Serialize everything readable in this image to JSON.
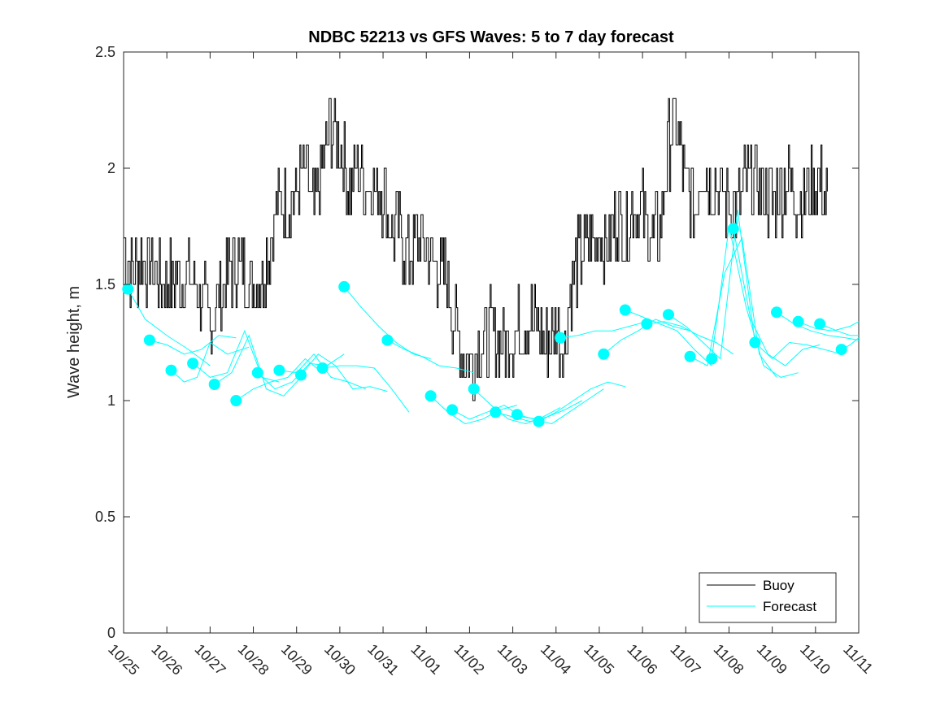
{
  "chart_data": {
    "type": "line",
    "title": "NDBC 52213 vs GFS Waves: 5 to 7 day forecast",
    "xlabel": "",
    "ylabel": "Wave height, m",
    "x_tick_labels": [
      "10/25",
      "10/26",
      "10/27",
      "10/28",
      "10/29",
      "10/30",
      "10/31",
      "11/01",
      "11/02",
      "11/03",
      "11/04",
      "11/05",
      "11/06",
      "11/07",
      "11/08",
      "11/09",
      "11/10",
      "11/11"
    ],
    "y_tick_labels": [
      "0",
      "0.5",
      "1",
      "1.5",
      "2",
      "2.5"
    ],
    "xlim_days": [
      0,
      17
    ],
    "ylim": [
      0,
      2.5
    ],
    "y_ticks": [
      0,
      0.5,
      1,
      1.5,
      2,
      2.5
    ],
    "grid": false,
    "legend": {
      "position": "bottom-right",
      "entries": [
        "Buoy",
        "Forecast"
      ]
    },
    "colors": {
      "buoy": "#000000",
      "forecast": "#00ffff"
    },
    "buoy_anchor_series": {
      "name": "Buoy",
      "x_days": [
        0.0,
        0.1,
        0.2,
        0.4,
        0.6,
        0.8,
        1.0,
        1.2,
        1.4,
        1.6,
        1.8,
        2.0,
        2.2,
        2.4,
        2.6,
        2.8,
        3.0,
        3.2,
        3.4,
        3.6,
        3.8,
        4.0,
        4.2,
        4.4,
        4.6,
        4.8,
        5.0,
        5.2,
        5.4,
        5.6,
        5.8,
        6.0,
        6.2,
        6.4,
        6.6,
        6.8,
        7.0,
        7.2,
        7.4,
        7.6,
        7.8,
        8.0,
        8.1,
        8.2,
        8.3,
        8.4,
        8.5,
        8.6,
        8.8,
        9.0,
        9.2,
        9.4,
        9.6,
        9.8,
        10.0,
        10.2,
        10.4,
        10.6,
        10.8,
        11.0,
        11.2,
        11.4,
        11.6,
        11.8,
        12.0,
        12.2,
        12.4,
        12.6,
        12.8,
        13.0,
        13.2,
        13.4,
        13.6,
        13.8,
        14.0,
        14.2,
        14.4,
        14.6,
        14.8,
        15.0,
        15.2,
        15.4,
        15.6,
        15.8,
        16.0,
        16.2,
        16.3
      ],
      "values": [
        1.7,
        1.6,
        1.55,
        1.62,
        1.58,
        1.55,
        1.5,
        1.52,
        1.53,
        1.5,
        1.45,
        1.3,
        1.45,
        1.55,
        1.6,
        1.55,
        1.5,
        1.55,
        1.7,
        1.85,
        1.85,
        1.9,
        2.0,
        1.8,
        2.0,
        2.2,
        2.1,
        1.9,
        2.0,
        1.95,
        1.9,
        1.9,
        1.75,
        1.7,
        1.6,
        1.7,
        1.65,
        1.6,
        1.55,
        1.4,
        1.25,
        1.15,
        1.2,
        1.25,
        1.25,
        1.25,
        1.3,
        1.3,
        1.25,
        1.3,
        1.3,
        1.35,
        1.3,
        1.25,
        1.3,
        1.25,
        1.55,
        1.65,
        1.7,
        1.7,
        1.65,
        1.8,
        1.7,
        1.85,
        1.8,
        1.7,
        1.75,
        2.1,
        2.2,
        1.9,
        1.85,
        2.0,
        1.95,
        1.9,
        1.85,
        1.85,
        1.95,
        1.95,
        1.9,
        1.85,
        1.9,
        1.95,
        1.85,
        1.9,
        1.95,
        1.9,
        1.8
      ]
    },
    "forecast_series": [
      {
        "name": "Forecast",
        "x_days": [
          0.1,
          0.5,
          1.0,
          1.5,
          2.0
        ],
        "values": [
          1.48,
          1.35,
          1.28,
          1.22,
          1.15
        ]
      },
      {
        "name": "Forecast",
        "x_days": [
          0.6,
          1.0,
          1.4,
          1.8,
          2.2,
          2.6
        ],
        "values": [
          1.26,
          1.24,
          1.2,
          1.22,
          1.28,
          1.27
        ]
      },
      {
        "name": "Forecast",
        "x_days": [
          1.1,
          1.4,
          1.7,
          2.0,
          2.4,
          2.9
        ],
        "values": [
          1.13,
          1.08,
          1.1,
          1.25,
          1.2,
          1.23
        ]
      },
      {
        "name": "Forecast",
        "x_days": [
          1.6,
          2.0,
          2.4,
          2.8,
          3.2,
          3.6
        ],
        "values": [
          1.16,
          1.1,
          1.12,
          1.3,
          1.1,
          1.08
        ]
      },
      {
        "name": "Forecast",
        "x_days": [
          2.1,
          2.5,
          2.9,
          3.3,
          3.7,
          4.1
        ],
        "values": [
          1.07,
          1.12,
          1.28,
          1.05,
          1.02,
          1.1
        ]
      },
      {
        "name": "Forecast",
        "x_days": [
          2.6,
          3.0,
          3.4,
          3.8,
          4.2,
          4.6
        ],
        "values": [
          1.0,
          1.05,
          1.08,
          1.1,
          1.18,
          1.12
        ]
      },
      {
        "name": "Forecast",
        "x_days": [
          3.1,
          3.5,
          3.9,
          4.3,
          4.7,
          5.1
        ],
        "values": [
          1.12,
          1.05,
          1.08,
          1.16,
          1.15,
          1.2
        ]
      },
      {
        "name": "Forecast",
        "x_days": [
          3.6,
          4.0,
          4.4,
          4.8,
          5.2,
          5.6
        ],
        "values": [
          1.13,
          1.12,
          1.2,
          1.1,
          1.08,
          1.05
        ]
      },
      {
        "name": "Forecast",
        "x_days": [
          4.1,
          4.5,
          4.9,
          5.3,
          5.7,
          6.1
        ],
        "values": [
          1.11,
          1.2,
          1.15,
          1.05,
          1.06,
          1.04
        ]
      },
      {
        "name": "Forecast",
        "x_days": [
          4.6,
          5.0,
          5.4,
          5.8,
          6.2,
          6.6
        ],
        "values": [
          1.14,
          1.15,
          1.15,
          1.14,
          1.05,
          0.95
        ]
      },
      {
        "name": "Forecast",
        "x_days": [
          5.1,
          5.5,
          5.9,
          6.3,
          6.7,
          7.1
        ],
        "values": [
          1.49,
          1.4,
          1.32,
          1.25,
          1.2,
          1.18
        ]
      },
      {
        "name": "Forecast",
        "x_days": [
          6.1,
          6.5,
          6.9,
          7.3,
          7.7,
          8.1
        ],
        "values": [
          1.26,
          1.22,
          1.19,
          1.15,
          1.14,
          1.12
        ]
      },
      {
        "name": "Forecast",
        "x_days": [
          7.1,
          7.5,
          7.9,
          8.3,
          8.7,
          9.1
        ],
        "values": [
          1.02,
          0.95,
          0.9,
          0.92,
          0.96,
          0.98
        ]
      },
      {
        "name": "Forecast",
        "x_days": [
          7.6,
          8.0,
          8.4,
          8.8,
          9.2,
          9.6
        ],
        "values": [
          0.96,
          0.92,
          0.95,
          0.98,
          0.93,
          0.92
        ]
      },
      {
        "name": "Forecast",
        "x_days": [
          8.1,
          8.5,
          8.9,
          9.3,
          9.7,
          10.1
        ],
        "values": [
          1.05,
          0.98,
          0.92,
          0.9,
          0.93,
          0.97
        ]
      },
      {
        "name": "Forecast",
        "x_days": [
          8.6,
          9.0,
          9.4,
          9.8,
          10.2,
          10.6
        ],
        "values": [
          0.95,
          0.93,
          0.91,
          0.93,
          0.96,
          1.0
        ]
      },
      {
        "name": "Forecast",
        "x_days": [
          9.1,
          9.5,
          9.9,
          10.3,
          10.7,
          11.1
        ],
        "values": [
          0.94,
          0.92,
          0.9,
          0.95,
          1.0,
          1.05
        ]
      },
      {
        "name": "Forecast",
        "x_days": [
          9.6,
          10.0,
          10.4,
          10.8,
          11.2,
          11.6
        ],
        "values": [
          0.91,
          0.95,
          1.0,
          1.05,
          1.08,
          1.06
        ]
      },
      {
        "name": "Forecast",
        "x_days": [
          10.1,
          10.5,
          10.9,
          11.3,
          11.7,
          12.1
        ],
        "values": [
          1.27,
          1.28,
          1.3,
          1.3,
          1.32,
          1.34
        ]
      },
      {
        "name": "Forecast",
        "x_days": [
          11.1,
          11.5,
          11.9,
          12.3,
          12.7,
          13.1
        ],
        "values": [
          1.2,
          1.26,
          1.3,
          1.35,
          1.32,
          1.3
        ]
      },
      {
        "name": "Forecast",
        "x_days": [
          11.6,
          12.0,
          12.4,
          12.8,
          13.2,
          13.6
        ],
        "values": [
          1.39,
          1.36,
          1.33,
          1.3,
          1.22,
          1.15
        ]
      },
      {
        "name": "Forecast",
        "x_days": [
          12.1,
          12.5,
          12.9,
          13.3,
          13.7,
          14.1
        ],
        "values": [
          1.33,
          1.34,
          1.32,
          1.28,
          1.25,
          1.2
        ]
      },
      {
        "name": "Forecast",
        "x_days": [
          12.6,
          13.0,
          13.4,
          13.8,
          14.2,
          14.6
        ],
        "values": [
          1.37,
          1.32,
          1.25,
          1.18,
          1.82,
          1.25
        ]
      },
      {
        "name": "Forecast",
        "x_days": [
          13.1,
          13.5,
          13.9,
          14.3,
          14.7,
          15.1
        ],
        "values": [
          1.19,
          1.15,
          1.55,
          1.7,
          1.2,
          1.1
        ]
      },
      {
        "name": "Forecast",
        "x_days": [
          13.6,
          14.0,
          14.4,
          14.8,
          15.2,
          15.6
        ],
        "values": [
          1.18,
          1.75,
          1.4,
          1.15,
          1.1,
          1.12
        ]
      },
      {
        "name": "Forecast",
        "x_days": [
          14.1,
          14.5,
          14.9,
          15.3,
          15.7,
          16.1
        ],
        "values": [
          1.74,
          1.35,
          1.2,
          1.15,
          1.22,
          1.24
        ]
      },
      {
        "name": "Forecast",
        "x_days": [
          14.6,
          15.0,
          15.4,
          15.8,
          16.2,
          16.6
        ],
        "values": [
          1.25,
          1.18,
          1.25,
          1.24,
          1.22,
          1.2
        ]
      },
      {
        "name": "Forecast",
        "x_days": [
          15.1,
          15.5,
          15.9,
          16.3,
          16.7,
          17.0
        ],
        "values": [
          1.38,
          1.33,
          1.3,
          1.28,
          1.27,
          1.26
        ]
      },
      {
        "name": "Forecast",
        "x_days": [
          15.6,
          16.0,
          16.4,
          16.8,
          17.0
        ],
        "values": [
          1.34,
          1.31,
          1.3,
          1.32,
          1.34
        ]
      },
      {
        "name": "Forecast",
        "x_days": [
          16.1,
          16.5,
          16.8,
          17.0
        ],
        "values": [
          1.33,
          1.3,
          1.28,
          1.28
        ]
      },
      {
        "name": "Forecast",
        "x_days": [
          16.6,
          16.8,
          17.0
        ],
        "values": [
          1.22,
          1.24,
          1.27
        ]
      }
    ],
    "forecast_markers": {
      "x_days": [
        0.1,
        0.6,
        1.1,
        1.6,
        2.1,
        2.6,
        3.1,
        3.6,
        4.1,
        4.6,
        5.1,
        6.1,
        7.1,
        7.6,
        8.1,
        8.6,
        9.1,
        9.6,
        10.1,
        11.1,
        11.6,
        12.1,
        12.6,
        13.1,
        13.6,
        14.1,
        14.6,
        15.1,
        15.6,
        16.1,
        16.6
      ],
      "values": [
        1.48,
        1.26,
        1.13,
        1.16,
        1.07,
        1.0,
        1.12,
        1.13,
        1.11,
        1.14,
        1.49,
        1.26,
        1.02,
        0.96,
        1.05,
        0.95,
        0.94,
        0.91,
        1.27,
        1.2,
        1.39,
        1.33,
        1.37,
        1.19,
        1.18,
        1.74,
        1.25,
        1.38,
        1.34,
        1.33,
        1.22
      ]
    }
  }
}
